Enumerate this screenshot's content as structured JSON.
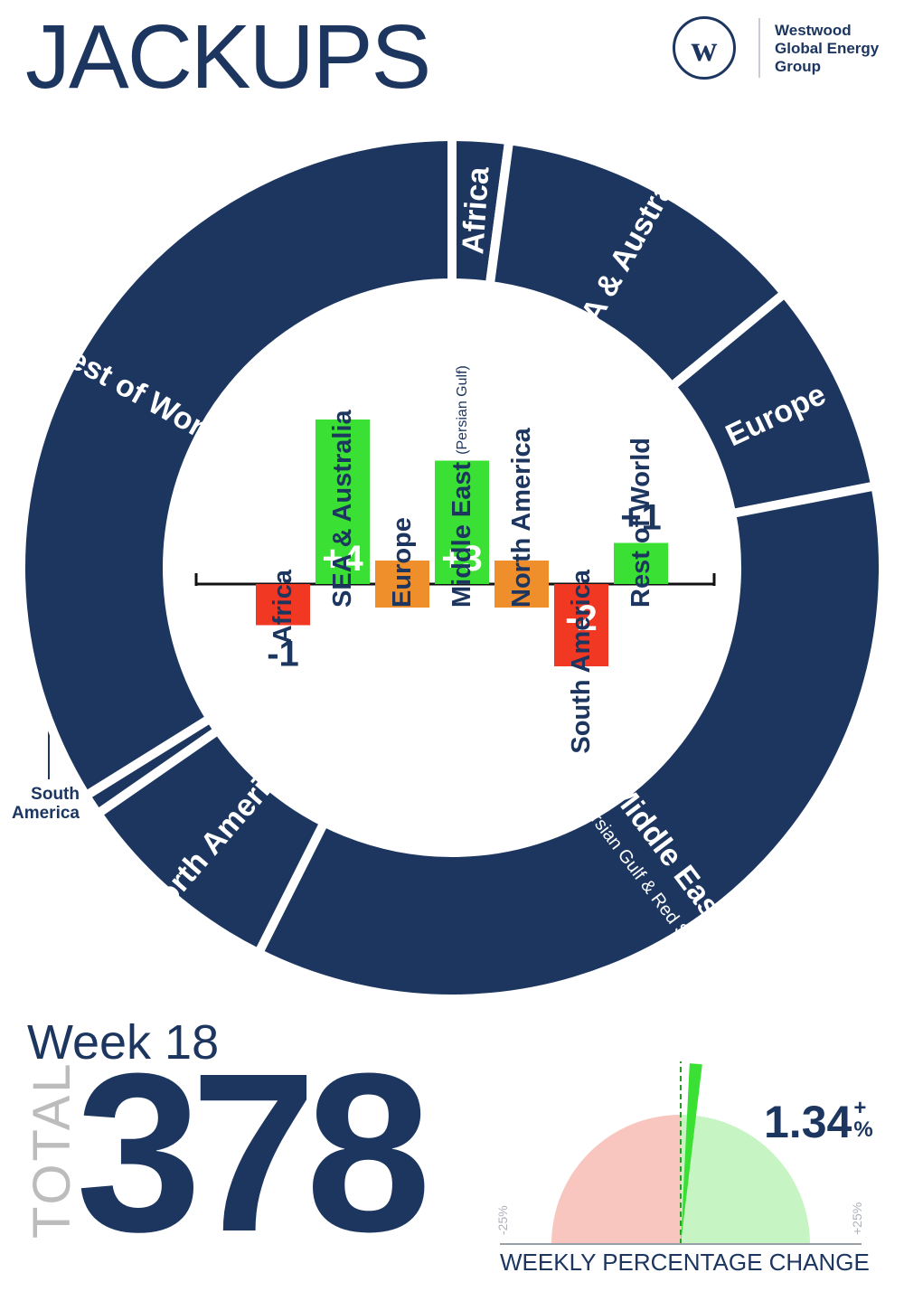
{
  "title": "JACKUPS",
  "logo": {
    "mark": "w",
    "lines": [
      "Westwood",
      "Global Energy",
      "Group"
    ],
    "icon": "westwood-logo-icon"
  },
  "week": "Week 18",
  "total": {
    "label": "TOTAL",
    "value": "378"
  },
  "gauge": {
    "value": "1.34",
    "sign": "+",
    "unit": "%",
    "label": "WEEKLY PERCENTAGE CHANGE",
    "min_label": "-25%",
    "max_label": "+25%",
    "min": -25,
    "max": 25,
    "change": 1.34
  },
  "colors": {
    "navy": "#1c3660",
    "positive": "#3ae033",
    "negative": "#f13823",
    "neutral": "#ef8f2c",
    "gauge_negative": "#f8c6bf",
    "gauge_positive": "#c6f4c2"
  },
  "chart_data": [
    {
      "type": "pie",
      "variant": "donut",
      "order": "clockwise from top",
      "slices": [
        {
          "name": "Africa",
          "value": 8
        },
        {
          "name": "SEA & Australia",
          "value": 45
        },
        {
          "name": "Europe",
          "value": 30
        },
        {
          "name": "Middle East",
          "name_note": "(Persian Gulf & Red Sea)",
          "value": 134
        },
        {
          "name": "North America",
          "value": 30
        },
        {
          "name": "South America",
          "value": 3
        },
        {
          "name": "Rest of World",
          "value": 128
        }
      ],
      "external_labels": [
        "South America"
      ]
    },
    {
      "type": "bar",
      "categories": [
        "Africa",
        "SEA & Australia",
        "Europe",
        "Middle East",
        "North America",
        "South America",
        "Rest of World"
      ],
      "category_notes": [
        "",
        "",
        "",
        "(Persian Gulf)",
        "",
        "",
        ""
      ],
      "values": [
        -1,
        4,
        0,
        3,
        0,
        -2,
        1
      ],
      "data_labels": [
        "-1",
        "+4",
        "",
        "+3",
        "",
        "-2",
        "+1"
      ]
    }
  ]
}
